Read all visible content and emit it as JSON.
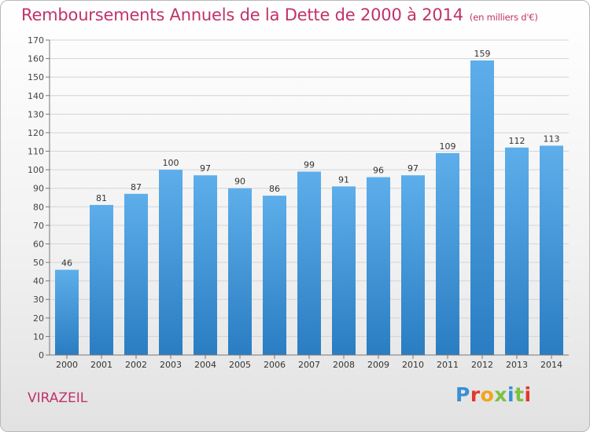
{
  "header": {
    "title": "Remboursements Annuels de la Dette de 2000 à 2014",
    "subtitle": "(en milliers d'€)"
  },
  "footer": {
    "location": "VIRAZEIL",
    "logo": "Proxiti"
  },
  "colors": {
    "title": "#c0326a",
    "bar_top": "#5daeea",
    "bar_bottom": "#2a7dc2",
    "grid": "#d4d4d4",
    "logo_letters": [
      "#3a8fd6",
      "#e2382b",
      "#f2a41c",
      "#7cc242",
      "#3a8fd6",
      "#7cc242",
      "#e2382b"
    ]
  },
  "chart_data": {
    "type": "bar",
    "categories": [
      "2000",
      "2001",
      "2002",
      "2003",
      "2004",
      "2005",
      "2006",
      "2007",
      "2008",
      "2009",
      "2010",
      "2011",
      "2012",
      "2013",
      "2014"
    ],
    "values": [
      46,
      81,
      87,
      100,
      97,
      90,
      86,
      99,
      91,
      96,
      97,
      109,
      159,
      112,
      113
    ],
    "title": "Remboursements Annuels de la Dette de 2000 à 2014",
    "xlabel": "",
    "ylabel": "",
    "ylim": [
      0,
      170
    ],
    "ytick_step": 10,
    "grid": true,
    "legend": "none"
  }
}
